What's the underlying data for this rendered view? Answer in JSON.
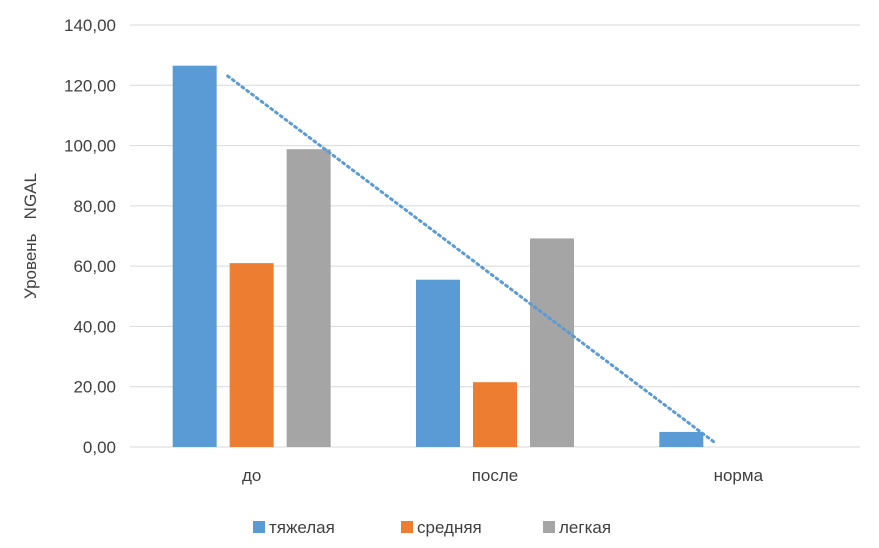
{
  "chart_data": {
    "type": "bar",
    "categories": [
      "до",
      "после",
      "норма"
    ],
    "series": [
      {
        "name": "тяжелая",
        "values": [
          126.5,
          55.5,
          5.0
        ],
        "color": "#5b9bd5"
      },
      {
        "name": "средняя",
        "values": [
          61.0,
          21.5,
          null
        ],
        "color": "#ed7d31"
      },
      {
        "name": "легкая",
        "values": [
          98.8,
          69.2,
          null
        ],
        "color": "#a5a5a5"
      }
    ],
    "ylabel": "Уровень   NGAL",
    "xlabel": "",
    "ylim": [
      0,
      140
    ],
    "yticks": [
      0,
      20,
      40,
      60,
      80,
      100,
      120,
      140
    ],
    "ytick_labels": [
      "0,00",
      "20,00",
      "40,00",
      "60,00",
      "80,00",
      "100,00",
      "120,00",
      "140,00"
    ],
    "grid": true,
    "legend": "bottom",
    "trendline": {
      "type": "linear",
      "series": "тяжелая",
      "style": "dotted",
      "color": "#5b9bd5"
    }
  }
}
